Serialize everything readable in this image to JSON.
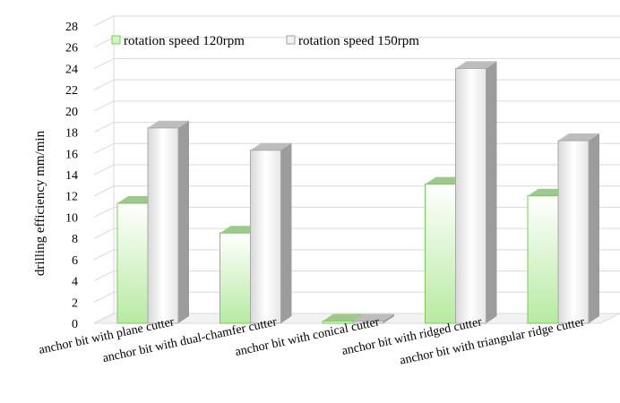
{
  "chart_data": {
    "type": "bar",
    "title": "",
    "xlabel": "",
    "ylabel": "drilling efficiency mm/min",
    "ylim": [
      0,
      28
    ],
    "yticks": [
      0,
      2,
      4,
      6,
      8,
      10,
      12,
      14,
      16,
      18,
      20,
      22,
      24,
      26,
      28
    ],
    "grid": true,
    "legend_position": "top-left",
    "categories": [
      "anchor bit with plane cutter",
      "anchor bit with dual-chamfer cutter",
      "anchor bit with conical cutter",
      "anchor bit with ridged cutter",
      "anchor bit with triangular ridge cutter"
    ],
    "series": [
      {
        "name": "rotation speed 120rpm",
        "values": [
          11.3,
          8.5,
          0.2,
          13.1,
          12.0
        ],
        "color": "#9fd98a"
      },
      {
        "name": "rotation speed 150rpm",
        "values": [
          18.4,
          16.3,
          0.2,
          24.0,
          17.2
        ],
        "color": "#d9d9d9"
      }
    ]
  }
}
